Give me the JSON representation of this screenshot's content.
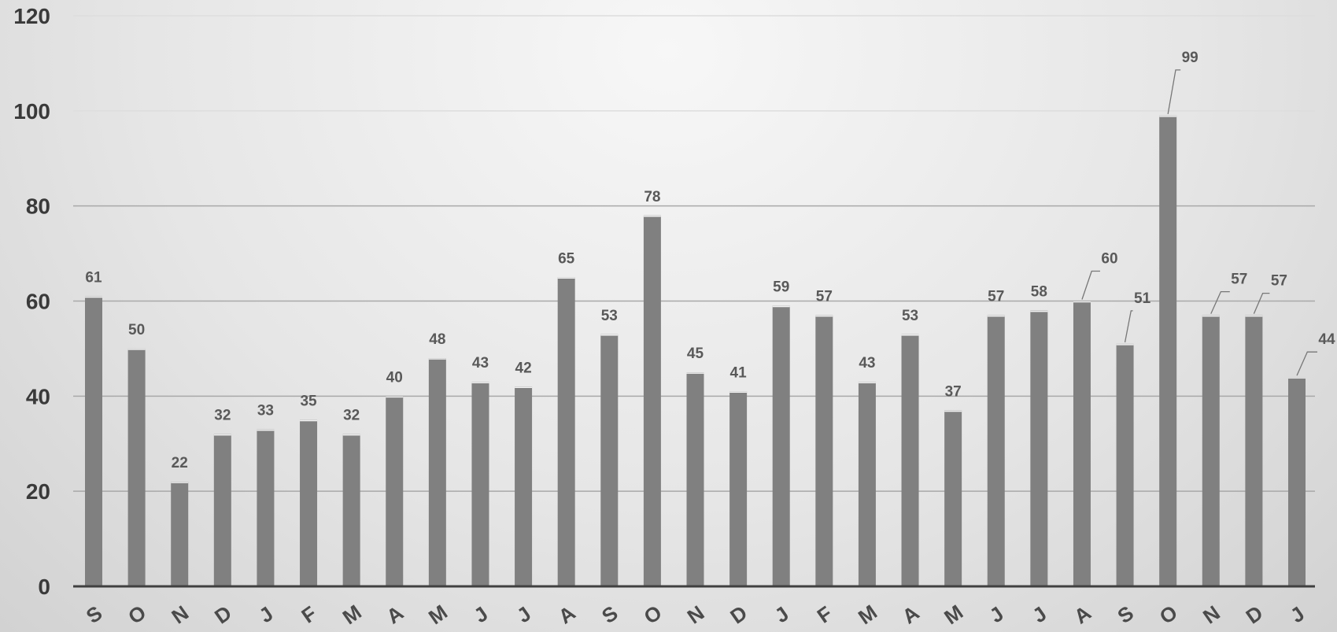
{
  "chart_data": {
    "type": "bar",
    "title": "",
    "xlabel": "",
    "ylabel": "",
    "ylim": [
      0,
      120
    ],
    "yticks": [
      0,
      20,
      40,
      60,
      80,
      100,
      120
    ],
    "grid": true,
    "legend": "none",
    "bar_color": "#808080",
    "categories": [
      "S",
      "O",
      "N",
      "D",
      "J",
      "F",
      "M",
      "A",
      "M",
      "J",
      "J",
      "A",
      "S",
      "O",
      "N",
      "D",
      "J",
      "F",
      "M",
      "A",
      "M",
      "J",
      "J",
      "A",
      "S",
      "O",
      "N",
      "D",
      "J"
    ],
    "values": [
      61,
      50,
      22,
      32,
      33,
      35,
      32,
      40,
      48,
      43,
      42,
      65,
      53,
      78,
      45,
      41,
      59,
      57,
      43,
      53,
      37,
      57,
      58,
      60,
      51,
      99,
      57,
      57,
      44
    ]
  }
}
